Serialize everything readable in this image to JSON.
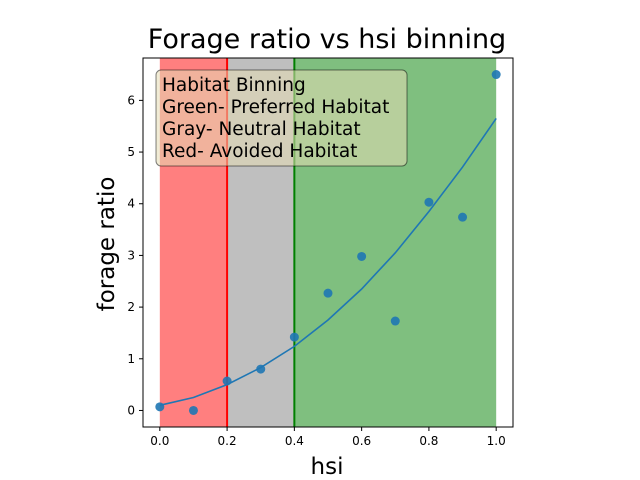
{
  "chart_data": {
    "type": "scatter",
    "title": "Forage ratio vs hsi binning",
    "xlabel": "hsi",
    "ylabel": "forage ratio",
    "xlim": [
      -0.05,
      1.05
    ],
    "ylim": [
      -0.32,
      6.82
    ],
    "xticks": [
      0.0,
      0.2,
      0.4,
      0.6,
      0.8,
      1.0
    ],
    "xtick_labels": [
      "0.0",
      "0.2",
      "0.4",
      "0.6",
      "0.8",
      "1.0"
    ],
    "yticks": [
      0,
      1,
      2,
      3,
      4,
      5,
      6
    ],
    "ytick_labels": [
      "0",
      "1",
      "2",
      "3",
      "4",
      "5",
      "6"
    ],
    "grid": false,
    "regions": [
      {
        "name": "Avoided",
        "x0": 0.0,
        "x1": 0.2,
        "color": "#ff0000",
        "alpha": 0.5
      },
      {
        "name": "Neutral",
        "x0": 0.2,
        "x1": 0.4,
        "color": "#808080",
        "alpha": 0.5
      },
      {
        "name": "Preferred",
        "x0": 0.4,
        "x1": 1.0,
        "color": "#008000",
        "alpha": 0.5
      }
    ],
    "vlines": [
      {
        "x": 0.2,
        "color": "#ff0000"
      },
      {
        "x": 0.4,
        "color": "#008000"
      }
    ],
    "series": [
      {
        "kind": "scatter",
        "color": "#1f77b4",
        "x": [
          0.0,
          0.1,
          0.2,
          0.3,
          0.4,
          0.5,
          0.6,
          0.7,
          0.8,
          0.9,
          1.0
        ],
        "y": [
          0.07,
          0.0,
          0.57,
          0.8,
          1.42,
          2.27,
          2.98,
          1.73,
          4.03,
          3.74,
          6.5
        ]
      },
      {
        "kind": "line",
        "color": "#1f77b4",
        "x": [
          0.0,
          0.1,
          0.2,
          0.3,
          0.4,
          0.5,
          0.6,
          0.7,
          0.8,
          0.9,
          1.0
        ],
        "y": [
          0.1,
          0.25,
          0.5,
          0.83,
          1.24,
          1.75,
          2.35,
          3.05,
          3.85,
          4.71,
          5.65
        ]
      }
    ],
    "legend": {
      "placement": "top-left",
      "lines": [
        "Habitat Binning",
        "Green- Preferred Habitat",
        "Gray- Neutral Habitat",
        "Red- Avoided Habitat"
      ]
    }
  }
}
